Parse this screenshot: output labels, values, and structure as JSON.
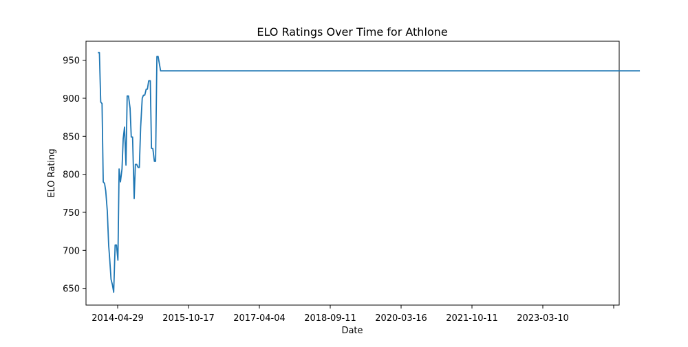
{
  "chart_data": {
    "type": "line",
    "title": "ELO Ratings Over Time for Athlone",
    "xlabel": "Date",
    "ylabel": "ELO Rating",
    "x_tick_labels": [
      "2014-04-29",
      "2015-10-17",
      "2017-04-04",
      "2018-09-11",
      "2020-03-16",
      "2021-10-11",
      "2023-03-10",
      ""
    ],
    "y_ticks": [
      650,
      700,
      750,
      800,
      850,
      900,
      950
    ],
    "ylim": [
      628,
      975
    ],
    "grid": false,
    "legend": "none",
    "line_color": "#1f77b4",
    "series": [
      {
        "x": [
          "2013-12-01",
          "2013-12-12",
          "2013-12-22",
          "2014-01-01",
          "2014-01-10",
          "2014-01-20",
          "2014-01-29",
          "2014-02-10",
          "2014-02-20",
          "2014-03-01",
          "2014-03-10",
          "2014-03-20",
          "2014-03-30",
          "2014-04-10",
          "2014-04-20",
          "2014-05-01",
          "2014-05-10",
          "2014-05-20",
          "2014-06-01",
          "2014-06-10",
          "2014-06-20",
          "2014-07-01",
          "2014-07-10",
          "2014-07-20",
          "2014-08-01",
          "2014-08-10",
          "2014-08-20",
          "2014-09-01",
          "2014-09-10",
          "2014-09-20",
          "2014-10-01",
          "2014-10-10",
          "2014-10-20",
          "2014-11-01",
          "2014-11-10",
          "2014-11-20",
          "2014-12-01",
          "2014-12-10",
          "2014-12-20",
          "2015-01-01",
          "2015-01-10",
          "2015-01-20",
          "2015-02-01",
          "2015-02-10",
          "2015-02-20",
          "2015-03-01",
          "2015-03-10",
          "2015-03-20",
          "2015-04-01",
          "2015-04-10",
          "2015-04-20",
          "2015-05-01",
          "2015-05-10",
          "2015-05-20",
          "2015-06-01",
          "2015-06-10",
          "2015-06-20",
          "2015-07-01",
          "2015-07-10",
          "2015-07-20",
          "2015-08-01",
          "2015-08-10",
          "2015-08-20",
          "2015-09-01",
          "2015-09-10",
          "2015-09-20",
          "2015-10-01",
          "2025-02-20"
        ],
        "values": [
          960,
          960,
          895,
          893,
          790,
          788,
          778,
          751,
          707,
          686,
          662,
          655,
          645,
          707,
          707,
          687,
          807,
          790,
          807,
          847,
          862,
          812,
          903,
          903,
          887,
          849,
          849,
          768,
          813,
          813,
          809,
          809,
          862,
          900,
          904,
          904,
          912,
          912,
          923,
          923,
          834,
          834,
          817,
          817,
          955,
          955,
          946,
          936,
          936,
          936,
          936,
          936,
          936,
          936,
          936,
          936,
          936,
          936,
          936,
          936,
          936,
          936,
          936,
          936,
          936,
          936,
          936,
          936
        ]
      }
    ]
  }
}
